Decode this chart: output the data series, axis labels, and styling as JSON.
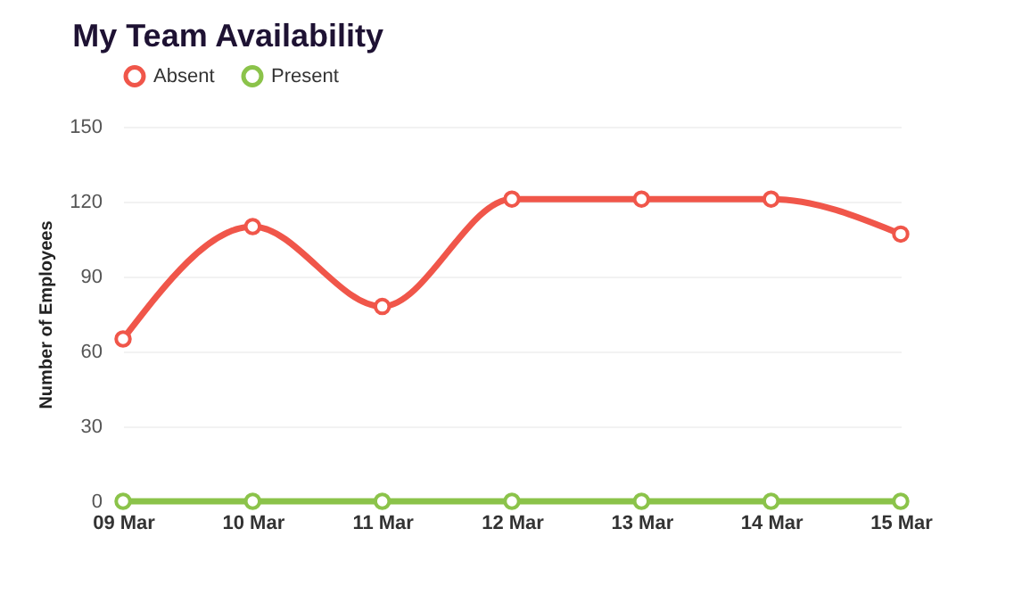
{
  "chart_data": {
    "type": "line",
    "title": "My Team Availability",
    "ylabel": "Number of Employees",
    "categories": [
      "09 Mar",
      "10 Mar",
      "11 Mar",
      "12 Mar",
      "13 Mar",
      "14 Mar",
      "15 Mar"
    ],
    "series": [
      {
        "name": "Absent",
        "color": "#f0564a",
        "values": [
          65,
          110,
          78,
          121,
          121,
          121,
          107
        ]
      },
      {
        "name": "Present",
        "color": "#8bc34a",
        "values": [
          0,
          0,
          0,
          0,
          0,
          0,
          0
        ]
      }
    ],
    "ylim": [
      0,
      150
    ],
    "yticks": [
      0,
      30,
      60,
      90,
      120,
      150
    ],
    "grid": "y",
    "legend": "top left",
    "marker": "circle",
    "line_style": "solid"
  }
}
